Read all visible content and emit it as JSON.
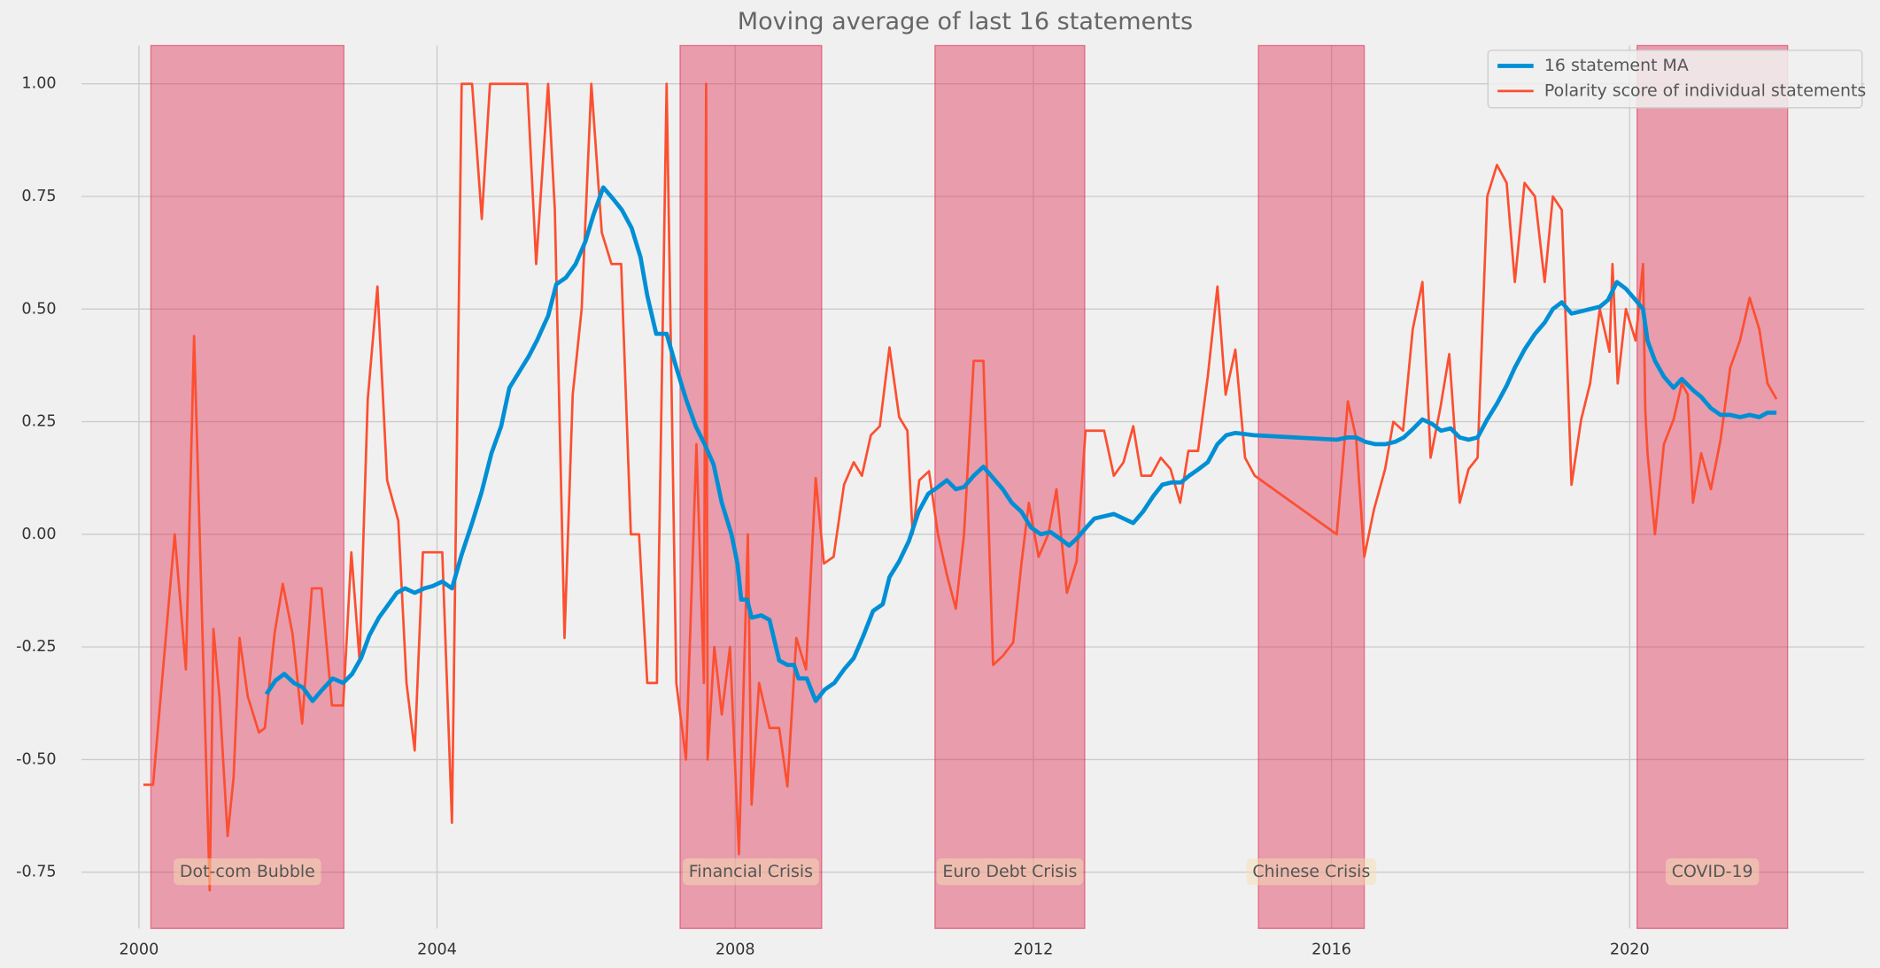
{
  "chart_data": {
    "type": "line",
    "title": "Moving average of last 16 statements",
    "xlim": [
      1999.23,
      2023.15
    ],
    "ylim": [
      -0.875,
      1.085
    ],
    "xticks": [
      2000,
      2004,
      2008,
      2012,
      2016,
      2020
    ],
    "yticks": [
      {
        "value": -0.75,
        "label": "-0.75"
      },
      {
        "value": -0.5,
        "label": "-0.50"
      },
      {
        "value": -0.25,
        "label": "-0.25"
      },
      {
        "value": 0,
        "label": "0.00"
      },
      {
        "value": 0.25,
        "label": "0.25"
      },
      {
        "value": 0.5,
        "label": "0.50"
      },
      {
        "value": 0.75,
        "label": "0.75"
      },
      {
        "value": 1,
        "label": "1.00"
      }
    ],
    "grid": true,
    "legend": "upper right",
    "shaded_regions": [
      {
        "label": "Dot-com Bubble",
        "start": 2000.16,
        "end": 2002.75
      },
      {
        "label": "Financial Crisis",
        "start": 2007.26,
        "end": 2009.16
      },
      {
        "label": "Euro Debt Crisis",
        "start": 2010.68,
        "end": 2012.69
      },
      {
        "label": "Chinese Crisis",
        "start": 2015.02,
        "end": 2016.44
      },
      {
        "label": "COVID-19",
        "start": 2020.1,
        "end": 2022.12
      }
    ],
    "shade_color": "#dc1e46",
    "series": [
      {
        "name": "16 statement MA",
        "color": "#008fd5",
        "x": [
          2001.71,
          2001.83,
          2001.95,
          2002.08,
          2002.2,
          2002.33,
          2002.46,
          2002.6,
          2002.74,
          2002.86,
          2002.98,
          2003.09,
          2003.22,
          2003.46,
          2003.57,
          2003.7,
          2003.83,
          2003.94,
          2004.07,
          2004.2,
          2004.33,
          2004.47,
          2004.6,
          2004.73,
          2004.86,
          2004.97,
          2005.1,
          2005.23,
          2005.34,
          2005.49,
          2005.6,
          2005.73,
          2005.86,
          2005.99,
          2006.1,
          2006.23,
          2006.36,
          2006.48,
          2006.61,
          2006.73,
          2006.82,
          2006.94,
          2007.08,
          2007.21,
          2007.34,
          2007.47,
          2007.59,
          2007.71,
          2007.82,
          2007.95,
          2008.03,
          2008.08,
          2008.16,
          2008.22,
          2008.35,
          2008.46,
          2008.59,
          2008.7,
          2008.79,
          2008.85,
          2008.96,
          2009.08,
          2009.2,
          2009.33,
          2009.46,
          2009.59,
          2009.72,
          2009.85,
          2009.98,
          2010.07,
          2010.2,
          2010.33,
          2010.46,
          2010.59,
          2010.72,
          2010.84,
          2010.96,
          2011.07,
          2011.2,
          2011.33,
          2011.46,
          2011.59,
          2011.71,
          2011.84,
          2011.97,
          2012.1,
          2012.23,
          2012.36,
          2012.48,
          2012.58,
          2012.71,
          2012.82,
          2012.95,
          2013.08,
          2013.21,
          2013.34,
          2013.47,
          2013.61,
          2013.73,
          2013.85,
          2013.98,
          2014.09,
          2014.22,
          2014.34,
          2014.47,
          2014.59,
          2014.71,
          2014.96,
          2016.07,
          2016.22,
          2016.33,
          2016.46,
          2016.59,
          2016.72,
          2016.85,
          2016.97,
          2017.1,
          2017.22,
          2017.35,
          2017.47,
          2017.6,
          2017.72,
          2017.84,
          2017.96,
          2018.09,
          2018.22,
          2018.35,
          2018.46,
          2018.59,
          2018.73,
          2018.86,
          2018.97,
          2019.09,
          2019.22,
          2019.35,
          2019.47,
          2019.6,
          2019.71,
          2019.83,
          2019.95,
          2020.08,
          2020.18,
          2020.24,
          2020.34,
          2020.46,
          2020.59,
          2020.7,
          2020.85,
          2020.96,
          2021.09,
          2021.22,
          2021.35,
          2021.48,
          2021.61,
          2021.74,
          2021.85,
          2021.97
        ],
        "values": [
          -0.355,
          -0.325,
          -0.31,
          -0.33,
          -0.34,
          -0.37,
          -0.345,
          -0.32,
          -0.33,
          -0.31,
          -0.275,
          -0.225,
          -0.185,
          -0.13,
          -0.12,
          -0.13,
          -0.12,
          -0.115,
          -0.105,
          -0.12,
          -0.045,
          0.025,
          0.095,
          0.18,
          0.24,
          0.325,
          0.36,
          0.395,
          0.43,
          0.485,
          0.555,
          0.57,
          0.6,
          0.65,
          0.71,
          0.77,
          0.745,
          0.72,
          0.68,
          0.615,
          0.53,
          0.445,
          0.445,
          0.37,
          0.3,
          0.24,
          0.2,
          0.155,
          0.07,
          0,
          -0.065,
          -0.145,
          -0.145,
          -0.185,
          -0.18,
          -0.19,
          -0.28,
          -0.29,
          -0.29,
          -0.32,
          -0.32,
          -0.37,
          -0.345,
          -0.33,
          -0.3,
          -0.275,
          -0.225,
          -0.17,
          -0.155,
          -0.095,
          -0.06,
          -0.015,
          0.05,
          0.09,
          0.105,
          0.12,
          0.1,
          0.105,
          0.13,
          0.15,
          0.125,
          0.1,
          0.07,
          0.05,
          0.015,
          0,
          0.005,
          -0.01,
          -0.025,
          -0.01,
          0.015,
          0.035,
          0.04,
          0.045,
          0.035,
          0.025,
          0.05,
          0.085,
          0.11,
          0.115,
          0.115,
          0.13,
          0.145,
          0.16,
          0.2,
          0.22,
          0.225,
          0.22,
          0.21,
          0.215,
          0.215,
          0.205,
          0.2,
          0.2,
          0.205,
          0.215,
          0.235,
          0.255,
          0.245,
          0.23,
          0.235,
          0.215,
          0.21,
          0.215,
          0.255,
          0.29,
          0.33,
          0.37,
          0.41,
          0.445,
          0.47,
          0.5,
          0.515,
          0.49,
          0.495,
          0.5,
          0.505,
          0.52,
          0.56,
          0.545,
          0.52,
          0.5,
          0.43,
          0.385,
          0.35,
          0.325,
          0.345,
          0.32,
          0.305,
          0.28,
          0.265,
          0.265,
          0.26,
          0.265,
          0.26,
          0.27,
          0.27
        ]
      },
      {
        "name": "Polarity score of individual statements",
        "color": "#fc4f30",
        "x": [
          2000.06,
          2000.19,
          2000.48,
          2000.63,
          2000.74,
          2000.95,
          2001.0,
          2001.08,
          2001.19,
          2001.27,
          2001.35,
          2001.46,
          2001.61,
          2001.69,
          2001.82,
          2001.93,
          2002.06,
          2002.19,
          2002.32,
          2002.45,
          2002.59,
          2002.74,
          2002.85,
          2002.96,
          2003.07,
          2003.2,
          2003.33,
          2003.48,
          2003.59,
          2003.7,
          2003.81,
          2003.96,
          2004.07,
          2004.2,
          2004.33,
          2004.47,
          2004.6,
          2004.71,
          2005.21,
          2005.33,
          2005.49,
          2005.58,
          2005.71,
          2005.82,
          2005.94,
          2006.07,
          2006.21,
          2006.34,
          2006.47,
          2006.6,
          2006.71,
          2006.82,
          2006.95,
          2007.08,
          2007.21,
          2007.34,
          2007.48,
          2007.58,
          2007.61,
          2007.63,
          2007.72,
          2007.82,
          2007.93,
          2008.05,
          2008.17,
          2008.22,
          2008.32,
          2008.46,
          2008.59,
          2008.7,
          2008.82,
          2008.95,
          2009.08,
          2009.19,
          2009.32,
          2009.46,
          2009.59,
          2009.7,
          2009.82,
          2009.94,
          2010.07,
          2010.2,
          2010.31,
          2010.38,
          2010.47,
          2010.6,
          2010.72,
          2010.84,
          2010.96,
          2011.07,
          2011.2,
          2011.33,
          2011.46,
          2011.59,
          2011.73,
          2011.84,
          2011.94,
          2012.07,
          2012.2,
          2012.31,
          2012.45,
          2012.58,
          2012.7,
          2012.95,
          2013.08,
          2013.21,
          2013.34,
          2013.45,
          2013.58,
          2013.71,
          2013.84,
          2013.97,
          2014.08,
          2014.21,
          2014.34,
          2014.47,
          2014.58,
          2014.71,
          2014.84,
          2014.97,
          2016.07,
          2016.22,
          2016.33,
          2016.44,
          2016.57,
          2016.72,
          2016.83,
          2016.96,
          2017.09,
          2017.22,
          2017.33,
          2017.46,
          2017.58,
          2017.72,
          2017.84,
          2017.96,
          2018.09,
          2018.22,
          2018.35,
          2018.46,
          2018.59,
          2018.73,
          2018.86,
          2018.97,
          2019.09,
          2019.22,
          2019.35,
          2019.47,
          2019.6,
          2019.73,
          2019.77,
          2019.84,
          2019.95,
          2020.08,
          2020.18,
          2020.21,
          2020.24,
          2020.34,
          2020.46,
          2020.59,
          2020.7,
          2020.78,
          2020.85,
          2020.96,
          2021.09,
          2021.22,
          2021.35,
          2021.48,
          2021.61,
          2021.74,
          2021.85,
          2021.97
        ],
        "values": [
          -0.556,
          -0.556,
          0,
          -0.3,
          0.44,
          -0.79,
          -0.21,
          -0.36,
          -0.67,
          -0.54,
          -0.23,
          -0.36,
          -0.44,
          -0.43,
          -0.22,
          -0.11,
          -0.22,
          -0.42,
          -0.12,
          -0.12,
          -0.38,
          -0.38,
          -0.04,
          -0.28,
          0.3,
          0.55,
          0.12,
          0.03,
          -0.33,
          -0.48,
          -0.04,
          -0.04,
          -0.04,
          -0.64,
          1,
          1,
          0.7,
          1,
          1,
          0.6,
          1,
          0.72,
          -0.23,
          0.31,
          0.5,
          1,
          0.67,
          0.6,
          0.6,
          0,
          0,
          -0.33,
          -0.33,
          1,
          -0.33,
          -0.5,
          0.2,
          -0.33,
          1,
          -0.5,
          -0.25,
          -0.4,
          -0.25,
          -0.71,
          0,
          -0.6,
          -0.33,
          -0.43,
          -0.43,
          -0.56,
          -0.23,
          -0.3,
          0.125,
          -0.065,
          -0.05,
          0.11,
          0.16,
          0.13,
          0.22,
          0.24,
          0.415,
          0.26,
          0.23,
          0,
          0.12,
          0.14,
          0,
          -0.09,
          -0.165,
          0,
          0.385,
          0.385,
          -0.29,
          -0.27,
          -0.24,
          -0.065,
          0.07,
          -0.05,
          0,
          0.1,
          -0.13,
          -0.06,
          0.23,
          0.23,
          0.13,
          0.16,
          0.24,
          0.13,
          0.13,
          0.17,
          0.145,
          0.07,
          0.185,
          0.185,
          0.35,
          0.55,
          0.31,
          0.41,
          0.17,
          0.13,
          0,
          0.295,
          0.215,
          -0.05,
          0.055,
          0.145,
          0.25,
          0.23,
          0.455,
          0.56,
          0.17,
          0.28,
          0.4,
          0.07,
          0.145,
          0.17,
          0.75,
          0.82,
          0.78,
          0.56,
          0.78,
          0.75,
          0.56,
          0.75,
          0.72,
          0.11,
          0.255,
          0.335,
          0.5,
          0.405,
          0.6,
          0.335,
          0.5,
          0.43,
          0.6,
          0.275,
          0.18,
          0,
          0.2,
          0.255,
          0.335,
          0.31,
          0.07,
          0.18,
          0.1,
          0.21,
          0.37,
          0.43,
          0.525,
          0.455,
          0.335,
          0.3
        ]
      }
    ]
  }
}
